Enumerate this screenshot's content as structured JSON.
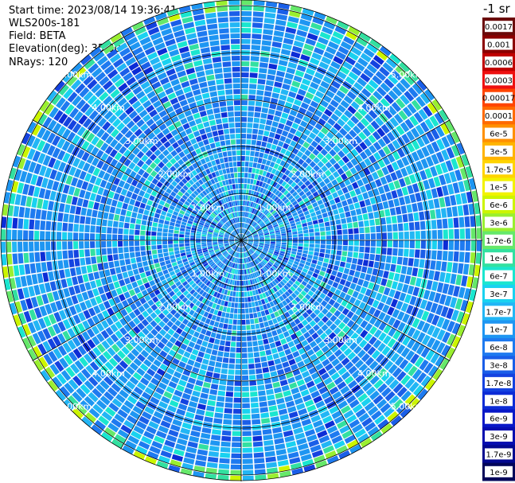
{
  "header": {
    "start_time": "Start time: 2023/08/14 19:36:41",
    "instrument": "WLS200s-181",
    "field": "Field: BETA",
    "elevation": "Elevation(deg): 35.30",
    "nrays": "NRays: 120"
  },
  "chart_data": {
    "type": "heatmap",
    "projection": "polar (PPI scan)",
    "range_ring_labels": [
      "1.00km",
      "2.00km",
      "3.00km",
      "4.00km",
      "5.00km"
    ],
    "range_rings_km": [
      1,
      2,
      3,
      4,
      5
    ],
    "nrays": 120,
    "field": "BETA",
    "colorbar": {
      "unit_label": "-1 sr",
      "tick_labels": [
        "0.0017",
        "0.001",
        "0.0006",
        "0.0003",
        "0.00017",
        "0.0001",
        "6e-5",
        "3e-5",
        "1.7e-5",
        "1e-5",
        "6e-6",
        "3e-6",
        "1.7e-6",
        "1e-6",
        "6e-7",
        "3e-7",
        "1.7e-7",
        "1e-7",
        "6e-8",
        "3e-8",
        "1.7e-8",
        "1e-8",
        "6e-9",
        "3e-9",
        "1.7e-9",
        "1e-9"
      ],
      "colors": [
        "#6b0a0a",
        "#8b0000",
        "#c00000",
        "#ee1010",
        "#ff4400",
        "#ff6a00",
        "#ff9000",
        "#ffb400",
        "#ffd400",
        "#f2f200",
        "#ccf500",
        "#9aef30",
        "#66e86a",
        "#33e0a0",
        "#1ae6cf",
        "#19d2f0",
        "#22b6f5",
        "#1e96f2",
        "#1e7af0",
        "#1a5ee8",
        "#1442e0",
        "#0c2cd6",
        "#0818c8",
        "#050db0",
        "#030890",
        "#02055a"
      ]
    },
    "dominant_color_range": [
      "1e-7",
      "3e-8"
    ]
  }
}
